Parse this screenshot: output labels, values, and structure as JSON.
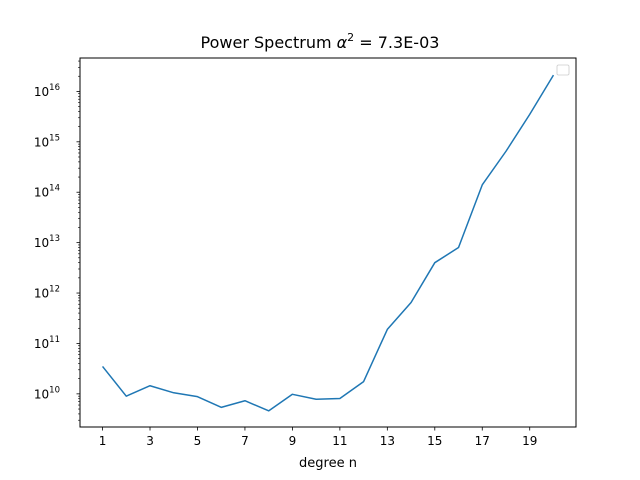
{
  "chart_data": {
    "type": "line",
    "title_prefix": "Power Spectrum ",
    "title_symbol": "α",
    "title_symbol_exp": "2",
    "title_suffix": " = 7.3E-03",
    "xlabel": "degree n",
    "ylabel": "",
    "x_ticks": [
      1,
      3,
      5,
      7,
      9,
      11,
      13,
      15,
      17,
      19
    ],
    "y_scale": "log",
    "y_tick_base": "10",
    "y_tick_exponents": [
      10,
      11,
      12,
      13,
      14,
      15,
      16
    ],
    "xlim": [
      0.05,
      20.95
    ],
    "ylim": [
      2200000000.0,
      4.6e+16
    ],
    "grid": false,
    "legend": "top-right",
    "line_color": "#1f77b4",
    "series": [
      {
        "x": [
          1,
          2,
          3,
          4,
          5,
          6,
          7,
          8,
          9,
          10,
          11,
          12,
          13,
          14,
          15,
          16,
          17,
          18,
          19,
          20
        ],
        "y": [
          35000000000.0,
          9000000000.0,
          14500000000.0,
          10500000000.0,
          8800000000.0,
          5400000000.0,
          7300000000.0,
          4600000000.0,
          9800000000.0,
          7800000000.0,
          8100000000.0,
          17500000000.0,
          190000000000.0,
          650000000000.0,
          4000000000000.0,
          8000000000000.0,
          140000000000000.0,
          650000000000000.0,
          3500000000000000.0,
          2.1e+16
        ]
      }
    ]
  }
}
